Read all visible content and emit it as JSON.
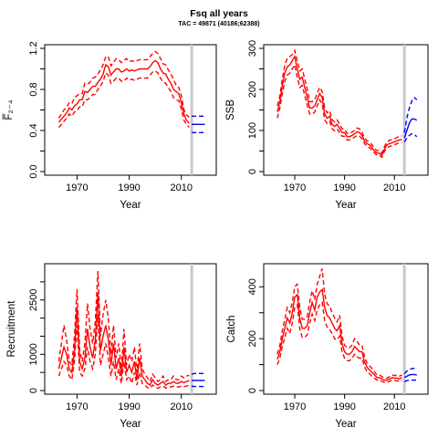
{
  "title": "Fsq all years",
  "subtitle": "TAC = 49871 (40186;62388)",
  "colors": {
    "historic": "#ff0000",
    "projection": "#0000ff",
    "tac_year_marker": "#c8c8c8"
  },
  "chart_data": [
    {
      "type": "line",
      "panel": "fbar",
      "ylabel": "F̅₂₋₄",
      "xlabel": "Year",
      "xlim": [
        1959,
        2022
      ],
      "ylim": [
        0,
        1.2
      ],
      "x_ticks": [
        1970,
        1990,
        2010
      ],
      "y_ticks": [
        0.0,
        0.4,
        0.8,
        1.2
      ],
      "y_tick_labels": [
        "0.0",
        "0.4",
        "0.8",
        "1.2"
      ],
      "y_minor_ticks": [
        0.2,
        0.6,
        1.0
      ],
      "marker_year": 2014,
      "series": [
        {
          "role": "historic",
          "x": [
            1963,
            1964,
            1965,
            1966,
            1967,
            1968,
            1969,
            1970,
            1971,
            1972,
            1973,
            1974,
            1975,
            1976,
            1977,
            1978,
            1979,
            1980,
            1981,
            1982,
            1983,
            1984,
            1985,
            1986,
            1987,
            1988,
            1989,
            1990,
            1991,
            1992,
            1993,
            1994,
            1995,
            1996,
            1997,
            1998,
            1999,
            2000,
            2001,
            2002,
            2003,
            2004,
            2005,
            2006,
            2007,
            2008,
            2009,
            2010,
            2011,
            2012,
            2013
          ],
          "estimate": [
            0.48,
            0.51,
            0.54,
            0.57,
            0.62,
            0.6,
            0.64,
            0.66,
            0.7,
            0.7,
            0.78,
            0.77,
            0.8,
            0.83,
            0.83,
            0.87,
            0.9,
            0.95,
            1.04,
            1.02,
            0.94,
            0.97,
            1.0,
            1.0,
            0.97,
            0.98,
            1.0,
            0.98,
            0.99,
            0.98,
            0.99,
            1.0,
            1.0,
            1.0,
            1.0,
            1.02,
            1.06,
            1.08,
            1.06,
            1.0,
            0.96,
            0.95,
            0.9,
            0.86,
            0.8,
            0.78,
            0.76,
            0.67,
            0.56,
            0.5,
            0.47
          ],
          "upper": [
            0.52,
            0.56,
            0.6,
            0.63,
            0.67,
            0.66,
            0.72,
            0.74,
            0.76,
            0.76,
            0.86,
            0.85,
            0.87,
            0.91,
            0.92,
            0.95,
            0.99,
            1.04,
            1.12,
            1.12,
            1.03,
            1.06,
            1.1,
            1.09,
            1.06,
            1.08,
            1.1,
            1.07,
            1.08,
            1.07,
            1.08,
            1.09,
            1.09,
            1.09,
            1.09,
            1.12,
            1.15,
            1.17,
            1.15,
            1.1,
            1.05,
            1.04,
            0.99,
            0.95,
            0.9,
            0.84,
            0.82,
            0.74,
            0.6,
            0.55,
            0.53
          ],
          "lower": [
            0.43,
            0.46,
            0.49,
            0.52,
            0.56,
            0.54,
            0.58,
            0.59,
            0.63,
            0.63,
            0.7,
            0.7,
            0.72,
            0.75,
            0.75,
            0.8,
            0.83,
            0.88,
            0.96,
            0.94,
            0.86,
            0.88,
            0.91,
            0.91,
            0.88,
            0.88,
            0.91,
            0.89,
            0.9,
            0.89,
            0.9,
            0.91,
            0.91,
            0.91,
            0.91,
            0.94,
            0.97,
            0.98,
            0.96,
            0.91,
            0.87,
            0.86,
            0.82,
            0.78,
            0.72,
            0.7,
            0.69,
            0.61,
            0.5,
            0.46,
            0.43
          ]
        },
        {
          "role": "projection",
          "x": [
            2014,
            2015,
            2016,
            2017,
            2018,
            2019
          ],
          "estimate": [
            0.46,
            0.46,
            0.46,
            0.46,
            0.46,
            0.46
          ],
          "upper": [
            0.54,
            0.54,
            0.54,
            0.54,
            0.54,
            0.54
          ],
          "lower": [
            0.38,
            0.38,
            0.38,
            0.38,
            0.38,
            0.38
          ]
        }
      ]
    },
    {
      "type": "line",
      "panel": "ssb",
      "ylabel": "SSB",
      "xlabel": "Year",
      "xlim": [
        1959,
        2022
      ],
      "ylim": [
        0,
        300
      ],
      "x_ticks": [
        1970,
        1990,
        2010
      ],
      "y_ticks": [
        0,
        100,
        200,
        300
      ],
      "y_tick_labels": [
        "0",
        "100",
        "200",
        "300"
      ],
      "y_minor_ticks": [
        50,
        150,
        250
      ],
      "marker_year": 2014,
      "series": [
        {
          "role": "historic",
          "x": [
            1963,
            1964,
            1965,
            1966,
            1967,
            1968,
            1969,
            1970,
            1971,
            1972,
            1973,
            1974,
            1975,
            1976,
            1977,
            1978,
            1979,
            1980,
            1981,
            1982,
            1983,
            1984,
            1985,
            1986,
            1987,
            1988,
            1989,
            1990,
            1991,
            1992,
            1993,
            1994,
            1995,
            1996,
            1997,
            1998,
            1999,
            2000,
            2001,
            2002,
            2003,
            2004,
            2005,
            2006,
            2007,
            2008,
            2009,
            2010,
            2011,
            2012,
            2013
          ],
          "estimate": [
            145,
            170,
            210,
            240,
            255,
            260,
            270,
            280,
            250,
            225,
            230,
            205,
            180,
            155,
            155,
            160,
            175,
            190,
            180,
            140,
            130,
            135,
            115,
            110,
            115,
            105,
            95,
            95,
            85,
            85,
            88,
            92,
            97,
            95,
            88,
            75,
            68,
            65,
            58,
            50,
            45,
            45,
            40,
            55,
            65,
            68,
            70,
            72,
            75,
            77,
            78
          ],
          "upper": [
            160,
            185,
            225,
            260,
            275,
            280,
            285,
            295,
            270,
            245,
            250,
            225,
            200,
            170,
            170,
            175,
            190,
            205,
            195,
            155,
            143,
            148,
            126,
            121,
            126,
            115,
            104,
            104,
            93,
            93,
            96,
            100,
            106,
            104,
            96,
            82,
            75,
            72,
            65,
            56,
            51,
            51,
            45,
            61,
            72,
            76,
            78,
            80,
            83,
            86,
            87
          ],
          "lower": [
            130,
            155,
            190,
            220,
            235,
            240,
            250,
            260,
            230,
            205,
            210,
            185,
            162,
            140,
            140,
            145,
            160,
            175,
            165,
            126,
            117,
            122,
            104,
            99,
            104,
            95,
            86,
            86,
            77,
            77,
            80,
            84,
            88,
            86,
            80,
            68,
            61,
            58,
            52,
            45,
            40,
            40,
            35,
            49,
            58,
            61,
            63,
            65,
            68,
            69,
            70
          ]
        },
        {
          "role": "projection",
          "x": [
            2014,
            2015,
            2016,
            2017,
            2018,
            2019
          ],
          "estimate": [
            82,
            100,
            118,
            128,
            128,
            125
          ],
          "upper": [
            95,
            130,
            155,
            172,
            180,
            175
          ],
          "lower": [
            72,
            82,
            88,
            92,
            90,
            85
          ]
        }
      ]
    },
    {
      "type": "line",
      "panel": "recruitment",
      "ylabel": "Recruitment",
      "xlabel": "Year",
      "xlim": [
        1959,
        2022
      ],
      "ylim": [
        0,
        3400
      ],
      "x_ticks": [
        1970,
        1990,
        2010
      ],
      "y_ticks": [
        0,
        1000,
        2500
      ],
      "y_tick_labels": [
        "0",
        "1000",
        "2500"
      ],
      "y_minor_ticks": [
        500,
        1500,
        2000,
        3000
      ],
      "marker_year": 2014,
      "series": [
        {
          "role": "historic",
          "x": [
            1963,
            1964,
            1965,
            1966,
            1967,
            1968,
            1969,
            1970,
            1971,
            1972,
            1973,
            1974,
            1975,
            1976,
            1977,
            1978,
            1979,
            1980,
            1981,
            1982,
            1983,
            1984,
            1985,
            1986,
            1987,
            1988,
            1989,
            1990,
            1991,
            1992,
            1993,
            1994,
            1995,
            1996,
            1997,
            1998,
            1999,
            2000,
            2001,
            2002,
            2003,
            2004,
            2005,
            2006,
            2007,
            2008,
            2009,
            2010,
            2011,
            2012,
            2013
          ],
          "estimate": [
            600,
            900,
            1200,
            1000,
            600,
            500,
            1100,
            2300,
            800,
            600,
            900,
            1700,
            1200,
            900,
            1400,
            2700,
            1100,
            1500,
            1800,
            1400,
            700,
            1300,
            600,
            900,
            400,
            1200,
            500,
            700,
            500,
            800,
            300,
            900,
            400,
            300,
            200,
            150,
            300,
            200,
            150,
            200,
            250,
            150,
            200,
            200,
            250,
            200,
            200,
            250,
            220,
            250,
            280
          ],
          "upper": [
            800,
            1300,
            1800,
            1400,
            800,
            700,
            1500,
            2800,
            1100,
            800,
            1300,
            2400,
            1700,
            1300,
            1900,
            3300,
            1500,
            2100,
            2500,
            2000,
            1000,
            1800,
            900,
            1300,
            600,
            1700,
            700,
            1000,
            800,
            1200,
            500,
            1300,
            600,
            450,
            350,
            250,
            450,
            350,
            250,
            300,
            400,
            250,
            300,
            300,
            400,
            300,
            300,
            400,
            350,
            400,
            420
          ],
          "lower": [
            400,
            600,
            800,
            700,
            400,
            300,
            800,
            1800,
            500,
            400,
            600,
            1200,
            800,
            600,
            1000,
            2100,
            700,
            1000,
            1300,
            900,
            400,
            800,
            300,
            600,
            200,
            800,
            300,
            400,
            200,
            500,
            150,
            500,
            200,
            150,
            80,
            60,
            150,
            100,
            60,
            100,
            120,
            70,
            100,
            100,
            120,
            100,
            100,
            120,
            110,
            120,
            150
          ]
        },
        {
          "role": "projection",
          "x": [
            2014,
            2015,
            2016,
            2017,
            2018,
            2019
          ],
          "estimate": [
            280,
            280,
            280,
            280,
            280,
            280
          ],
          "upper": [
            450,
            470,
            470,
            470,
            470,
            470
          ],
          "lower": [
            120,
            110,
            110,
            110,
            110,
            110
          ]
        }
      ]
    },
    {
      "type": "line",
      "panel": "catch",
      "ylabel": "Catch",
      "xlabel": "Year",
      "xlim": [
        1959,
        2022
      ],
      "ylim": [
        0,
        475
      ],
      "x_ticks": [
        1970,
        1990,
        2010
      ],
      "y_ticks": [
        0,
        200,
        400
      ],
      "y_tick_labels": [
        "0",
        "200",
        "400"
      ],
      "y_minor_ticks": [
        100,
        300
      ],
      "marker_year": 2014,
      "series": [
        {
          "role": "historic",
          "x": [
            1963,
            1964,
            1965,
            1966,
            1967,
            1968,
            1969,
            1970,
            1971,
            1972,
            1973,
            1974,
            1975,
            1976,
            1977,
            1978,
            1979,
            1980,
            1981,
            1982,
            1983,
            1984,
            1985,
            1986,
            1987,
            1988,
            1989,
            1990,
            1991,
            1992,
            1993,
            1994,
            1995,
            1996,
            1997,
            1998,
            1999,
            2000,
            2001,
            2002,
            2003,
            2004,
            2005,
            2006,
            2007,
            2008,
            2009,
            2010,
            2011,
            2012,
            2013
          ],
          "estimate": [
            120,
            150,
            200,
            240,
            280,
            260,
            300,
            360,
            370,
            280,
            240,
            240,
            250,
            300,
            340,
            310,
            360,
            380,
            390,
            320,
            290,
            280,
            260,
            240,
            230,
            250,
            180,
            150,
            140,
            140,
            150,
            170,
            160,
            150,
            150,
            110,
            90,
            80,
            70,
            60,
            50,
            50,
            45,
            40,
            40,
            45,
            50,
            48,
            48,
            45,
            50
          ],
          "upper": [
            140,
            175,
            230,
            275,
            320,
            300,
            340,
            400,
            410,
            320,
            275,
            275,
            285,
            340,
            385,
            350,
            410,
            440,
            470,
            370,
            335,
            325,
            300,
            280,
            265,
            290,
            210,
            175,
            165,
            165,
            175,
            200,
            190,
            175,
            175,
            130,
            105,
            95,
            85,
            72,
            60,
            60,
            54,
            48,
            48,
            54,
            60,
            58,
            58,
            55,
            60
          ],
          "lower": [
            100,
            125,
            170,
            205,
            240,
            220,
            260,
            320,
            330,
            240,
            205,
            205,
            215,
            260,
            295,
            270,
            310,
            330,
            340,
            270,
            245,
            235,
            220,
            200,
            195,
            210,
            150,
            125,
            115,
            115,
            125,
            140,
            130,
            125,
            125,
            90,
            75,
            65,
            55,
            48,
            40,
            40,
            36,
            32,
            32,
            36,
            40,
            38,
            38,
            35,
            40
          ]
        },
        {
          "role": "projection",
          "x": [
            2014,
            2015,
            2016,
            2017,
            2018,
            2019
          ],
          "estimate": [
            50,
            55,
            60,
            62,
            62,
            60
          ],
          "upper": [
            65,
            75,
            80,
            85,
            85,
            85
          ],
          "lower": [
            35,
            38,
            40,
            40,
            40,
            40
          ]
        }
      ]
    }
  ]
}
